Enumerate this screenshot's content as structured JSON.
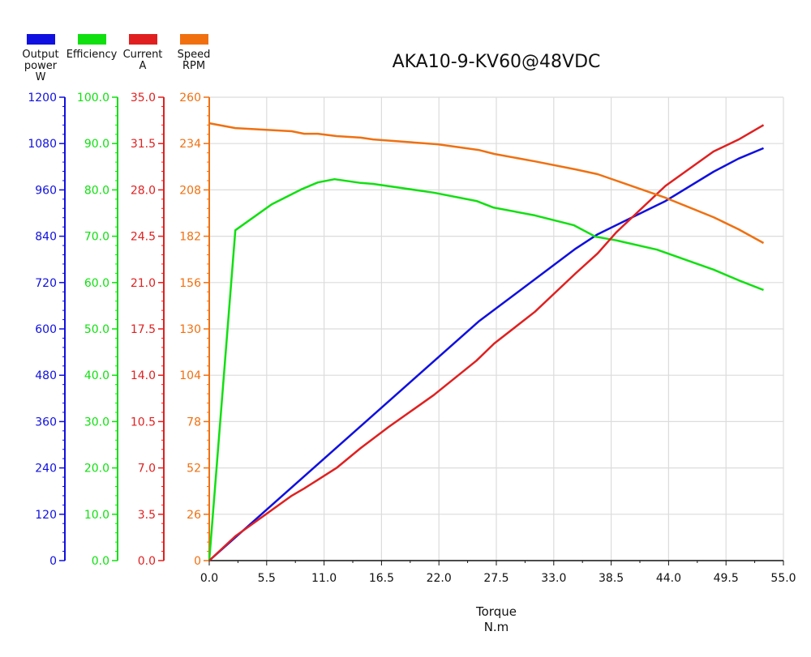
{
  "chart_data": {
    "type": "line",
    "title": "AKA10-9-KV60@48VDC",
    "xlabel": [
      "Torque",
      "N.m"
    ],
    "xlim": [
      0,
      55
    ],
    "x_ticks": [
      "0.0",
      "5.5",
      "11.0",
      "16.5",
      "22.0",
      "27.5",
      "33.0",
      "38.5",
      "44.0",
      "49.5",
      "55.0"
    ],
    "grid": true,
    "legend_placement": "top-left",
    "axes": [
      {
        "key": "power",
        "label": [
          "Output",
          "power",
          "W"
        ],
        "color": "#1010e0",
        "ylim": [
          0,
          1200
        ],
        "ticks": [
          "0",
          "120",
          "240",
          "360",
          "480",
          "600",
          "720",
          "840",
          "960",
          "1080",
          "1200"
        ]
      },
      {
        "key": "eff",
        "label": [
          "Efficiency"
        ],
        "color": "#10e010",
        "ylim": [
          0,
          100
        ],
        "ticks": [
          "0.0",
          "10.0",
          "20.0",
          "30.0",
          "40.0",
          "50.0",
          "60.0",
          "70.0",
          "80.0",
          "90.0",
          "100.0"
        ]
      },
      {
        "key": "current",
        "label": [
          "Current",
          "A"
        ],
        "color": "#e02020",
        "ylim": [
          0,
          35
        ],
        "ticks": [
          "0.0",
          "3.5",
          "7.0",
          "10.5",
          "14.0",
          "17.5",
          "21.0",
          "24.5",
          "28.0",
          "31.5",
          "35.0"
        ]
      },
      {
        "key": "speed",
        "label": [
          "Speed",
          "RPM"
        ],
        "color": "#f07010",
        "ylim": [
          0,
          260
        ],
        "ticks": [
          "0",
          "26",
          "52",
          "78",
          "104",
          "130",
          "156",
          "182",
          "208",
          "234",
          "260"
        ]
      }
    ],
    "series": [
      {
        "name": "Output power W",
        "axis": "power",
        "x": [
          0,
          25.8,
          35.1,
          37.2,
          43.7,
          48.3,
          50.7,
          53.1
        ],
        "y": [
          0,
          619,
          808,
          845,
          931,
          1007,
          1041,
          1068
        ]
      },
      {
        "name": "Efficiency",
        "axis": "eff",
        "x": [
          0,
          2.5,
          6.0,
          8.9,
          10.4,
          12.0,
          14.5,
          15.7,
          21.5,
          25.6,
          27.2,
          31.2,
          34.9,
          37.0,
          39.0,
          42.9,
          46.4,
          48.3,
          50.7,
          53.1
        ],
        "y": [
          0,
          71.3,
          76.9,
          80.2,
          81.6,
          82.3,
          81.5,
          81.3,
          79.4,
          77.6,
          76.2,
          74.5,
          72.4,
          69.9,
          69.1,
          67.1,
          64.3,
          62.8,
          60.5,
          58.4
        ]
      },
      {
        "name": "Current A",
        "axis": "current",
        "x": [
          0,
          2.5,
          7.9,
          9.1,
          10.4,
          12.2,
          14.5,
          17.2,
          21.5,
          25.6,
          27.3,
          31.2,
          35.1,
          37.2,
          39.0,
          43.7,
          48.3,
          50.7,
          53.1
        ],
        "y": [
          0,
          1.84,
          4.9,
          5.45,
          6.1,
          7.0,
          8.5,
          10.1,
          12.5,
          15.1,
          16.4,
          18.8,
          21.7,
          23.2,
          24.8,
          28.3,
          30.9,
          31.8,
          32.9
        ]
      },
      {
        "name": "Speed RPM",
        "axis": "speed",
        "x": [
          0,
          2.5,
          7.9,
          9.1,
          10.4,
          12.2,
          14.5,
          15.7,
          21.9,
          25.8,
          27.3,
          31.2,
          35.1,
          37.2,
          39.0,
          43.7,
          48.3,
          50.7,
          53.1
        ],
        "y": [
          245.4,
          242.7,
          240.9,
          239.5,
          239.5,
          238.2,
          237.3,
          236.3,
          233.6,
          230.4,
          228.2,
          224.0,
          219.5,
          216.8,
          213.2,
          203.6,
          192.7,
          185.9,
          178.2
        ]
      }
    ]
  }
}
